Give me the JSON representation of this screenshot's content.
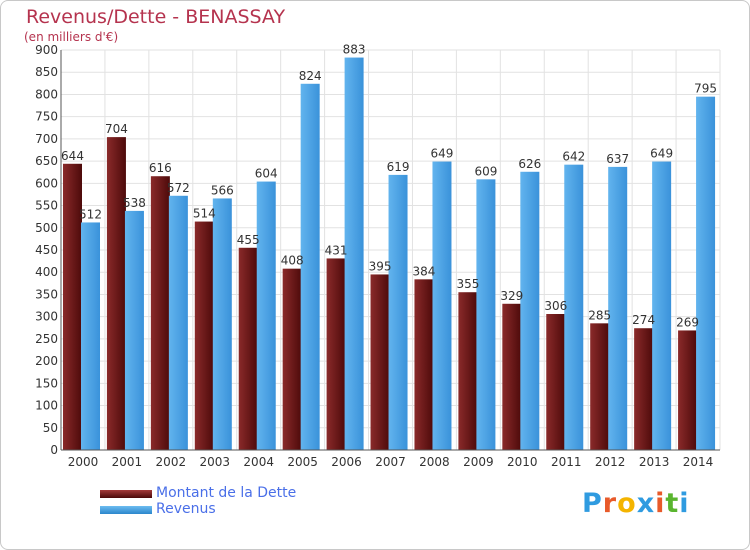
{
  "chart_data": {
    "type": "bar",
    "title": "Revenus/Dette - BENASSAY",
    "subtitle": "(en milliers d'€)",
    "categories": [
      "2000",
      "2001",
      "2002",
      "2003",
      "2004",
      "2005",
      "2006",
      "2007",
      "2008",
      "2009",
      "2010",
      "2011",
      "2012",
      "2013",
      "2014"
    ],
    "series": [
      {
        "name": "Montant de la Dette",
        "color": "#7a1e1e",
        "values": [
          644,
          704,
          616,
          514,
          455,
          408,
          431,
          395,
          384,
          355,
          329,
          306,
          285,
          274,
          269
        ]
      },
      {
        "name": "Revenus",
        "color": "#4aa3e8",
        "values": [
          512,
          538,
          572,
          566,
          604,
          824,
          883,
          619,
          649,
          609,
          626,
          642,
          637,
          649,
          795
        ]
      }
    ],
    "y_ticks": [
      0,
      50,
      100,
      150,
      200,
      250,
      300,
      350,
      400,
      450,
      500,
      550,
      600,
      650,
      700,
      750,
      800,
      850,
      900
    ],
    "ylim": [
      0,
      900
    ],
    "grid": true,
    "legend_position": "bottom-left"
  },
  "logo": {
    "letters": [
      "P",
      "r",
      "o",
      "x",
      "i",
      "t",
      "i"
    ],
    "colors": [
      "#2f9be0",
      "#e85a2a",
      "#f4b400",
      "#2f9be0",
      "#e85a2a",
      "#5ab52f",
      "#2f9be0"
    ]
  }
}
